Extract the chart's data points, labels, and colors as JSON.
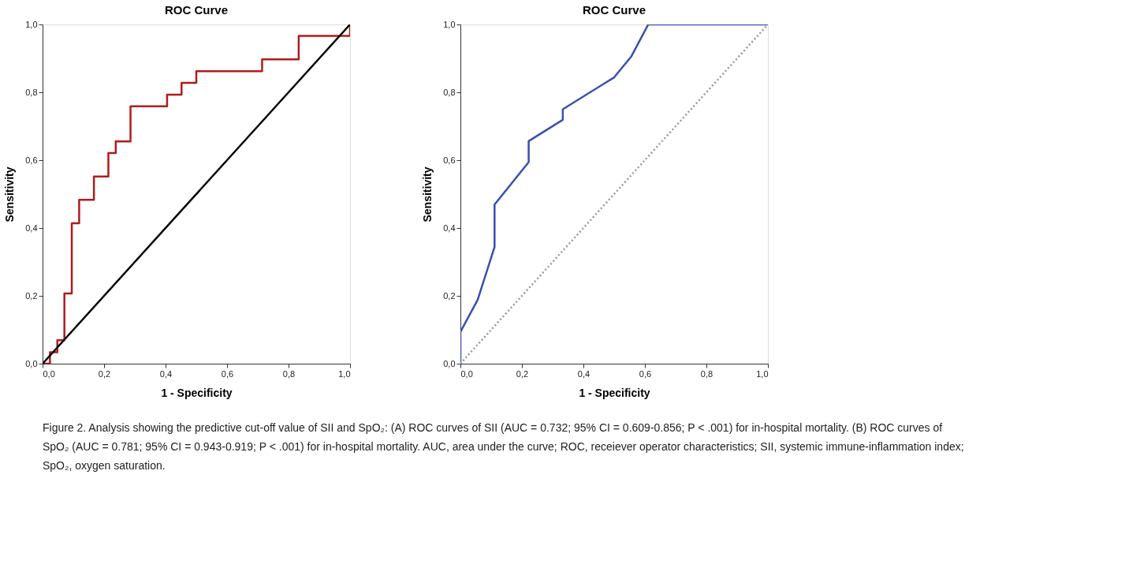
{
  "chart_data": [
    {
      "type": "step",
      "title": "ROC Curve",
      "xlabel": "1 - Specificity",
      "ylabel": "Sensitivity",
      "xlim": [
        0,
        1
      ],
      "ylim": [
        0,
        1
      ],
      "xticks": [
        {
          "value": 0,
          "label": "0,0"
        },
        {
          "value": 0.2,
          "label": "0,2"
        },
        {
          "value": 0.4,
          "label": "0,4"
        },
        {
          "value": 0.6,
          "label": "0,6"
        },
        {
          "value": 0.8,
          "label": "0,8"
        },
        {
          "value": 1,
          "label": "1,0"
        }
      ],
      "yticks": [
        {
          "value": 0,
          "label": "0,0"
        },
        {
          "value": 0.2,
          "label": "0,2"
        },
        {
          "value": 0.4,
          "label": "0,4"
        },
        {
          "value": 0.6,
          "label": "0,6"
        },
        {
          "value": 0.8,
          "label": "0,8"
        },
        {
          "value": 1,
          "label": "1,0"
        }
      ],
      "series": [
        {
          "color": "#b01c1c",
          "line_style": "solid",
          "x": [
            0,
            0.024,
            0.048,
            0.071,
            0.095,
            0.119,
            0.167,
            0.214,
            0.238,
            0.286,
            0.405,
            0.452,
            0.5,
            0.714,
            0.833,
            1.0
          ],
          "values": [
            0,
            0.034,
            0.069,
            0.207,
            0.414,
            0.483,
            0.552,
            0.621,
            0.655,
            0.759,
            0.793,
            0.828,
            0.862,
            0.897,
            0.966,
            1.0
          ]
        },
        {
          "type": "line",
          "color": "#000000",
          "line_style": "solid",
          "x": [
            0,
            1
          ],
          "values": [
            0,
            1
          ]
        }
      ]
    },
    {
      "type": "line",
      "title": "ROC Curve",
      "xlabel": "1 - Specificity",
      "ylabel": "Sensitivity",
      "xlim": [
        0,
        1
      ],
      "ylim": [
        0,
        1
      ],
      "xticks": [
        {
          "value": 0,
          "label": "0,0"
        },
        {
          "value": 0.2,
          "label": "0,2"
        },
        {
          "value": 0.4,
          "label": "0,4"
        },
        {
          "value": 0.6,
          "label": "0,6"
        },
        {
          "value": 0.8,
          "label": "0,8"
        },
        {
          "value": 1,
          "label": "1,0"
        }
      ],
      "yticks": [
        {
          "value": 0,
          "label": "0,0"
        },
        {
          "value": 0.2,
          "label": "0,2"
        },
        {
          "value": 0.4,
          "label": "0,4"
        },
        {
          "value": 0.6,
          "label": "0,6"
        },
        {
          "value": 0.8,
          "label": "0,8"
        },
        {
          "value": 1,
          "label": "1,0"
        }
      ],
      "series": [
        {
          "color": "#3a50b0",
          "line_style": "solid",
          "x": [
            0,
            0,
            0.056,
            0.111,
            0.111,
            0.222,
            0.222,
            0.333,
            0.333,
            0.5,
            0.556,
            0.611,
            1.0
          ],
          "values": [
            0,
            0.094,
            0.188,
            0.344,
            0.469,
            0.594,
            0.656,
            0.719,
            0.75,
            0.844,
            0.906,
            1.0,
            1.0
          ]
        },
        {
          "color": "#999999",
          "line_style": "dotted",
          "x": [
            0,
            1
          ],
          "values": [
            0,
            1
          ]
        }
      ],
      "annotations": [
        "Figure 2.  Analysis showing the predictive cut-off value of SII and SpO₂: (A) ROC curves of SII (AUC = 0.732; 95% CI = 0.609-0.856; P < .001) for in-hospital mortality. (B) ROC curves of SpO₂ (AUC = 0.781; 95% CI = 0.943-0.919; P < .001) for in-hospital mortality. AUC, area under the curve; ROC, receiever operator characteristics; SII, systemic immune-inflammation index; SpO₂, oxygen saturation."
      ]
    }
  ]
}
